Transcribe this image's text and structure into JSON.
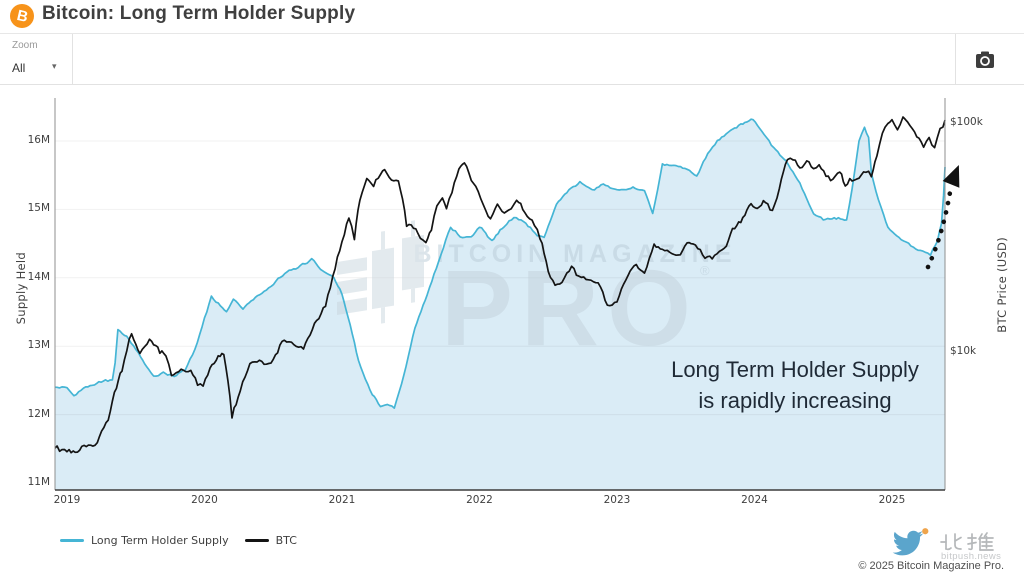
{
  "header": {
    "title": "Bitcoin: Long Term Holder Supply",
    "logo_letter": "B"
  },
  "toolbar": {
    "zoom_label": "Zoom",
    "zoom_value": "All",
    "zoom_caret": "▾"
  },
  "watermark": {
    "line1": "BITCOIN MAGAZINE",
    "line2": "PRO",
    "registered": "®"
  },
  "annotation": {
    "line1": "Long Term Holder Supply",
    "line2": "is rapidly increasing"
  },
  "footer": {
    "copyright": "© 2025 Bitcoin Magazine Pro.",
    "bitpush_name": "比推",
    "bitpush_domain": "bitpush.news"
  },
  "chart_data": {
    "type": "line",
    "title": "Bitcoin: Long Term Holder Supply",
    "x_axis": {
      "ticks": [
        2019,
        2020,
        2021,
        2022,
        2023,
        2024,
        2025
      ],
      "range": [
        2018.91,
        2025.39
      ],
      "grid": false
    },
    "left_axis": {
      "label": "Supply Held",
      "ticks": [
        "11M",
        "12M",
        "13M",
        "14M",
        "15M",
        "16M"
      ],
      "range_millions": [
        11,
        16.47
      ],
      "grid": true
    },
    "right_axis": {
      "label": "BTC Price (USD)",
      "ticks": [
        "$10k",
        "$100k"
      ],
      "scale": "log"
    },
    "legend_position": "bottom-left",
    "series": [
      {
        "name": "Long Term Holder Supply",
        "axis": "left",
        "unit": "million BTC",
        "color": "#45b5d5",
        "fill": "#daecf6",
        "points": [
          [
            2018.91,
            12.4
          ],
          [
            2019.0,
            12.4
          ],
          [
            2019.05,
            12.27
          ],
          [
            2019.12,
            12.38
          ],
          [
            2019.2,
            12.44
          ],
          [
            2019.28,
            12.5
          ],
          [
            2019.33,
            12.5
          ],
          [
            2019.35,
            12.75
          ],
          [
            2019.37,
            13.25
          ],
          [
            2019.45,
            13.1
          ],
          [
            2019.52,
            12.9
          ],
          [
            2019.58,
            12.7
          ],
          [
            2019.63,
            12.56
          ],
          [
            2019.7,
            12.61
          ],
          [
            2019.78,
            12.56
          ],
          [
            2019.86,
            12.66
          ],
          [
            2019.93,
            12.95
          ],
          [
            2020.0,
            13.4
          ],
          [
            2020.05,
            13.72
          ],
          [
            2020.1,
            13.62
          ],
          [
            2020.16,
            13.5
          ],
          [
            2020.21,
            13.69
          ],
          [
            2020.28,
            13.54
          ],
          [
            2020.37,
            13.72
          ],
          [
            2020.45,
            13.82
          ],
          [
            2020.52,
            13.95
          ],
          [
            2020.6,
            14.1
          ],
          [
            2020.68,
            14.15
          ],
          [
            2020.78,
            14.27
          ],
          [
            2020.86,
            14.1
          ],
          [
            2020.94,
            14.0
          ],
          [
            2021.0,
            13.76
          ],
          [
            2021.06,
            13.3
          ],
          [
            2021.12,
            12.8
          ],
          [
            2021.17,
            12.5
          ],
          [
            2021.22,
            12.3
          ],
          [
            2021.28,
            12.12
          ],
          [
            2021.33,
            12.16
          ],
          [
            2021.38,
            12.1
          ],
          [
            2021.45,
            12.58
          ],
          [
            2021.53,
            13.27
          ],
          [
            2021.62,
            13.76
          ],
          [
            2021.72,
            14.34
          ],
          [
            2021.79,
            14.74
          ],
          [
            2021.86,
            14.6
          ],
          [
            2021.94,
            14.59
          ],
          [
            2022.0,
            14.75
          ],
          [
            2022.09,
            14.54
          ],
          [
            2022.18,
            14.76
          ],
          [
            2022.25,
            14.88
          ],
          [
            2022.32,
            14.83
          ],
          [
            2022.42,
            14.62
          ],
          [
            2022.47,
            14.59
          ],
          [
            2022.56,
            15.08
          ],
          [
            2022.65,
            15.28
          ],
          [
            2022.73,
            15.4
          ],
          [
            2022.82,
            15.28
          ],
          [
            2022.9,
            15.37
          ],
          [
            2023.0,
            15.28
          ],
          [
            2023.1,
            15.32
          ],
          [
            2023.2,
            15.28
          ],
          [
            2023.26,
            14.93
          ],
          [
            2023.33,
            15.66
          ],
          [
            2023.43,
            15.64
          ],
          [
            2023.51,
            15.59
          ],
          [
            2023.58,
            15.49
          ],
          [
            2023.66,
            15.81
          ],
          [
            2023.73,
            16.0
          ],
          [
            2023.81,
            16.13
          ],
          [
            2023.9,
            16.25
          ],
          [
            2023.99,
            16.32
          ],
          [
            2024.07,
            16.1
          ],
          [
            2024.14,
            15.9
          ],
          [
            2024.23,
            15.71
          ],
          [
            2024.33,
            15.37
          ],
          [
            2024.43,
            14.93
          ],
          [
            2024.5,
            14.86
          ],
          [
            2024.58,
            14.87
          ],
          [
            2024.67,
            14.85
          ],
          [
            2024.71,
            15.3
          ],
          [
            2024.76,
            16.0
          ],
          [
            2024.8,
            16.2
          ],
          [
            2024.83,
            16.05
          ],
          [
            2024.85,
            15.53
          ],
          [
            2024.9,
            15.14
          ],
          [
            2024.94,
            14.9
          ],
          [
            2024.97,
            14.74
          ],
          [
            2025.05,
            14.58
          ],
          [
            2025.12,
            14.5
          ],
          [
            2025.19,
            14.4
          ],
          [
            2025.26,
            14.36
          ],
          [
            2025.28,
            14.33
          ],
          [
            2025.33,
            14.55
          ],
          [
            2025.36,
            14.8
          ],
          [
            2025.39,
            15.62
          ]
        ]
      },
      {
        "name": "BTC",
        "axis": "right",
        "unit": "USD",
        "color": "#141414",
        "points": [
          [
            2018.91,
            3800
          ],
          [
            2019.0,
            3700
          ],
          [
            2019.06,
            3630
          ],
          [
            2019.14,
            3900
          ],
          [
            2019.22,
            4000
          ],
          [
            2019.3,
            5100
          ],
          [
            2019.36,
            7000
          ],
          [
            2019.4,
            8400
          ],
          [
            2019.47,
            12200
          ],
          [
            2019.53,
            9800
          ],
          [
            2019.6,
            11500
          ],
          [
            2019.66,
            10200
          ],
          [
            2019.72,
            9800
          ],
          [
            2019.76,
            8000
          ],
          [
            2019.83,
            8300
          ],
          [
            2019.9,
            8400
          ],
          [
            2019.95,
            7300
          ],
          [
            2019.99,
            7100
          ],
          [
            2020.04,
            8300
          ],
          [
            2020.1,
            9500
          ],
          [
            2020.14,
            9900
          ],
          [
            2020.2,
            5200
          ],
          [
            2020.26,
            6800
          ],
          [
            2020.33,
            8900
          ],
          [
            2020.4,
            9300
          ],
          [
            2020.45,
            8800
          ],
          [
            2020.5,
            9200
          ],
          [
            2020.58,
            11500
          ],
          [
            2020.65,
            10800
          ],
          [
            2020.72,
            10400
          ],
          [
            2020.8,
            13100
          ],
          [
            2020.88,
            16100
          ],
          [
            2020.95,
            23000
          ],
          [
            2021.0,
            30200
          ],
          [
            2021.05,
            38500
          ],
          [
            2021.09,
            31400
          ],
          [
            2021.13,
            46000
          ],
          [
            2021.18,
            57000
          ],
          [
            2021.23,
            53600
          ],
          [
            2021.28,
            59500
          ],
          [
            2021.31,
            62500
          ],
          [
            2021.36,
            55400
          ],
          [
            2021.41,
            56500
          ],
          [
            2021.47,
            36000
          ],
          [
            2021.52,
            34900
          ],
          [
            2021.57,
            32000
          ],
          [
            2021.61,
            30500
          ],
          [
            2021.65,
            34000
          ],
          [
            2021.69,
            43800
          ],
          [
            2021.73,
            47000
          ],
          [
            2021.76,
            42500
          ],
          [
            2021.8,
            49900
          ],
          [
            2021.85,
            63400
          ],
          [
            2021.89,
            67400
          ],
          [
            2021.94,
            57000
          ],
          [
            2021.99,
            50000
          ],
          [
            2022.03,
            43000
          ],
          [
            2022.08,
            38000
          ],
          [
            2022.13,
            43800
          ],
          [
            2022.18,
            40900
          ],
          [
            2022.23,
            42500
          ],
          [
            2022.27,
            47000
          ],
          [
            2022.33,
            40500
          ],
          [
            2022.4,
            36000
          ],
          [
            2022.44,
            31400
          ],
          [
            2022.5,
            22400
          ],
          [
            2022.55,
            19600
          ],
          [
            2022.6,
            20200
          ],
          [
            2022.67,
            23300
          ],
          [
            2022.74,
            21100
          ],
          [
            2022.81,
            20200
          ],
          [
            2022.88,
            19600
          ],
          [
            2022.93,
            16100
          ],
          [
            2023.0,
            16600
          ],
          [
            2023.08,
            21700
          ],
          [
            2023.14,
            24000
          ],
          [
            2023.2,
            22400
          ],
          [
            2023.27,
            29300
          ],
          [
            2023.33,
            28400
          ],
          [
            2023.4,
            27000
          ],
          [
            2023.46,
            26500
          ],
          [
            2023.51,
            30200
          ],
          [
            2023.57,
            29300
          ],
          [
            2023.64,
            25700
          ],
          [
            2023.71,
            26200
          ],
          [
            2023.78,
            28000
          ],
          [
            2023.84,
            34000
          ],
          [
            2023.9,
            37000
          ],
          [
            2023.96,
            43800
          ],
          [
            2024.02,
            42500
          ],
          [
            2024.08,
            46000
          ],
          [
            2024.13,
            40500
          ],
          [
            2024.18,
            52000
          ],
          [
            2024.24,
            68900
          ],
          [
            2024.28,
            71000
          ],
          [
            2024.33,
            64300
          ],
          [
            2024.38,
            67400
          ],
          [
            2024.43,
            62500
          ],
          [
            2024.47,
            65800
          ],
          [
            2024.52,
            59300
          ],
          [
            2024.57,
            56500
          ],
          [
            2024.62,
            61000
          ],
          [
            2024.66,
            53600
          ],
          [
            2024.71,
            56500
          ],
          [
            2024.76,
            57700
          ],
          [
            2024.81,
            61000
          ],
          [
            2024.85,
            59300
          ],
          [
            2024.89,
            72400
          ],
          [
            2024.93,
            90000
          ],
          [
            2024.97,
            97800
          ],
          [
            2025.0,
            103000
          ],
          [
            2025.04,
            91000
          ],
          [
            2025.08,
            106000
          ],
          [
            2025.13,
            97800
          ],
          [
            2025.18,
            88900
          ],
          [
            2025.23,
            80300
          ],
          [
            2025.27,
            86000
          ],
          [
            2025.31,
            77800
          ],
          [
            2025.35,
            94000
          ],
          [
            2025.39,
            103000
          ]
        ]
      }
    ],
    "annotation": "Long Term Holder Supply is rapidly increasing",
    "arrow": {
      "style": "dotted",
      "from_xy": [
        928,
        267
      ],
      "to_xy": [
        951,
        184
      ],
      "meaning": "supply rising sharply"
    }
  }
}
